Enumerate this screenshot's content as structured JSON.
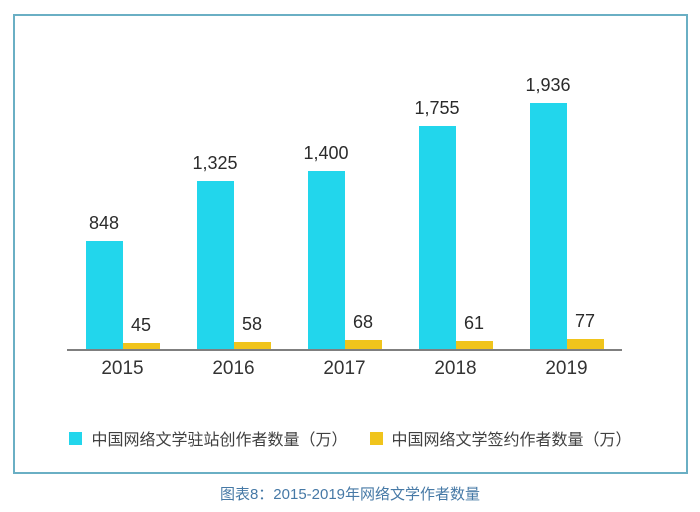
{
  "caption": "图表8：2015-2019年网络文学作者数量",
  "colors": {
    "series1_cyan": "#22d6ec",
    "series2_gold": "#f0c41c",
    "card_border": "#6aafc4",
    "axis_line": "#7f7f7f",
    "value_text": "#2b2b2b",
    "caption_text": "#4679a6"
  },
  "chart_data": {
    "type": "bar",
    "title": "图表8：2015-2019年网络文学作者数量",
    "categories": [
      "2015",
      "2016",
      "2017",
      "2018",
      "2019"
    ],
    "series": [
      {
        "name": "中国网络文学驻站创作者数量（万）",
        "key": "resident-creators",
        "color": "#22d6ec",
        "values": [
          848,
          1325,
          1400,
          1755,
          1936
        ],
        "labels": [
          "848",
          "1,325",
          "1,400",
          "1,755",
          "1,936"
        ]
      },
      {
        "name": "中国网络文学签约作者数量（万）",
        "key": "contracted-authors",
        "color": "#f0c41c",
        "values": [
          45,
          58,
          68,
          61,
          77
        ],
        "labels": [
          "45",
          "58",
          "68",
          "61",
          "77"
        ]
      }
    ],
    "xlabel": "",
    "ylabel": "",
    "ylim": [
      0,
      2000
    ],
    "grid": false,
    "y_axis_shown": false,
    "value_labels_shown": true,
    "legend_position": "bottom"
  }
}
